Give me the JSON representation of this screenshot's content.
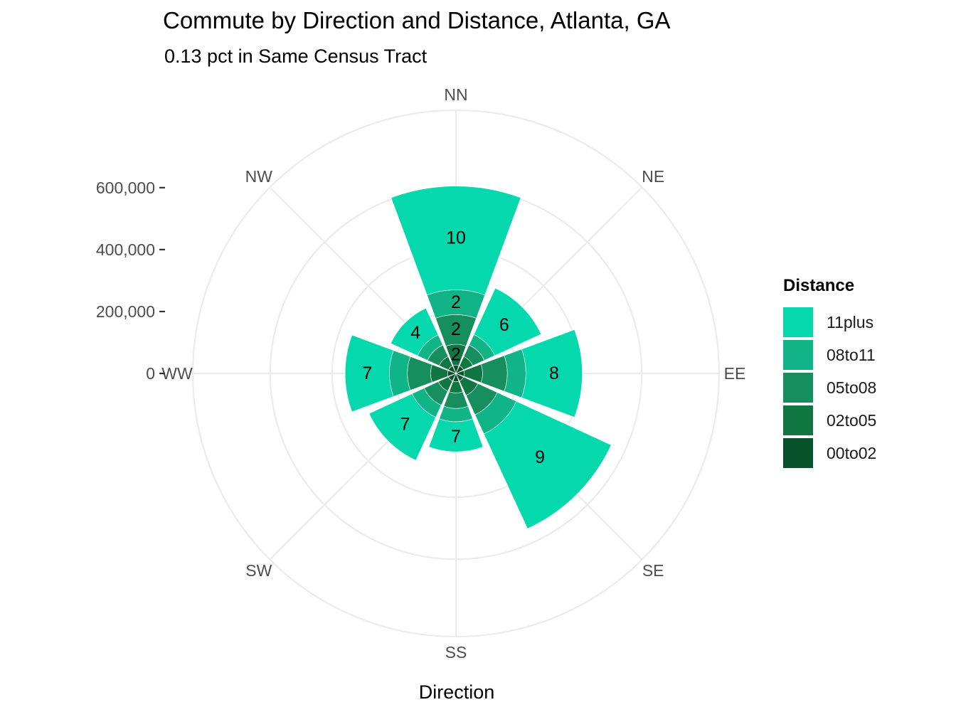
{
  "title": "Commute by Direction and Distance, Atlanta, GA",
  "subtitle": "0.13 pct in Same Census Tract",
  "chart_data": {
    "type": "bar",
    "coord": "polar",
    "title": "Commute by Direction and Distance, Atlanta, GA",
    "subtitle": "0.13 pct in Same Census Tract",
    "xlabel": "Direction",
    "ylabel": "",
    "categories": [
      "NN",
      "NE",
      "EE",
      "SE",
      "SS",
      "SW",
      "WW",
      "NW"
    ],
    "y_ticks": [
      0,
      200000,
      400000,
      600000
    ],
    "y_tick_labels": [
      "0",
      "200,000",
      "400,000",
      "600,000"
    ],
    "ylim": [
      0,
      850000
    ],
    "stacked": true,
    "legend_title": "Distance",
    "legend_position": "right",
    "grid": true,
    "series": [
      {
        "name": "00to02",
        "color": "#07522A",
        "values": [
          27000,
          27000,
          27000,
          27000,
          27000,
          27000,
          27000,
          27000
        ]
      },
      {
        "name": "02to05",
        "color": "#117742",
        "values": [
          67000,
          33000,
          59000,
          51000,
          36000,
          36000,
          55000,
          33000
        ]
      },
      {
        "name": "05to08",
        "color": "#178E5E",
        "values": [
          96000,
          41000,
          80000,
          69000,
          50000,
          50000,
          75000,
          41000
        ]
      },
      {
        "name": "08to11",
        "color": "#10B487",
        "values": [
          80000,
          37000,
          60000,
          68000,
          43000,
          43000,
          58000,
          36000
        ]
      },
      {
        "name": "11plus",
        "color": "#05D8AC",
        "values": [
          335000,
          165000,
          182000,
          337000,
          97000,
          153000,
          143000,
          95000
        ]
      }
    ],
    "bar_labels": [
      {
        "category": "NN",
        "series": "11plus",
        "text": "10"
      },
      {
        "category": "NN",
        "series": "08to11",
        "text": "2"
      },
      {
        "category": "NN",
        "series": "05to08",
        "text": "2"
      },
      {
        "category": "NN",
        "series": "02to05",
        "text": "2"
      },
      {
        "category": "NE",
        "series": "11plus",
        "text": "6"
      },
      {
        "category": "EE",
        "series": "11plus",
        "text": "8"
      },
      {
        "category": "SE",
        "series": "11plus",
        "text": "9"
      },
      {
        "category": "SS",
        "series": "11plus",
        "text": "7"
      },
      {
        "category": "SW",
        "series": "11plus",
        "text": "7"
      },
      {
        "category": "WW",
        "series": "11plus",
        "text": "7"
      },
      {
        "category": "NW",
        "series": "11plus",
        "text": "4"
      }
    ],
    "legend_order": [
      "11plus",
      "08to11",
      "05to08",
      "02to05",
      "00to02"
    ]
  }
}
